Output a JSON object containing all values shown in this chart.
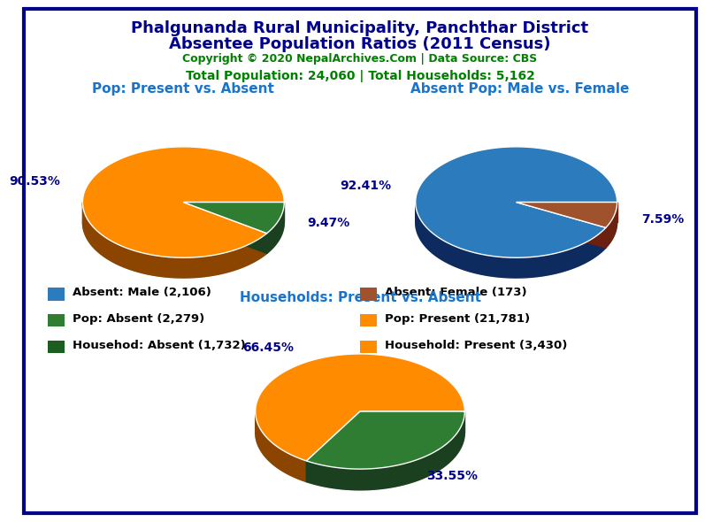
{
  "title_line1": "Phalgunanda Rural Municipality, Panchthar District",
  "title_line2": "Absentee Population Ratios (2011 Census)",
  "title_color": "#00008B",
  "copyright_text": "Copyright © 2020 NepalArchives.Com | Data Source: CBS",
  "copyright_color": "#008000",
  "stats_text": "Total Population: 24,060 | Total Households: 5,162",
  "stats_color": "#008000",
  "pie1_title": "Pop: Present vs. Absent",
  "pie1_title_color": "#1874CD",
  "pie1_values": [
    90.53,
    9.47
  ],
  "pie1_colors": [
    "#FF8C00",
    "#2E7D32"
  ],
  "pie1_shadow_colors": [
    "#8B4500",
    "#1B4020"
  ],
  "pie1_labels": [
    "90.53%",
    "9.47%"
  ],
  "pie2_title": "Absent Pop: Male vs. Female",
  "pie2_title_color": "#1874CD",
  "pie2_values": [
    92.41,
    7.59
  ],
  "pie2_colors": [
    "#2B7BBD",
    "#A0522D"
  ],
  "pie2_shadow_colors": [
    "#0D2B5E",
    "#6B2010"
  ],
  "pie2_labels": [
    "92.41%",
    "7.59%"
  ],
  "pie3_title": "Households: Present vs. Absent",
  "pie3_title_color": "#1874CD",
  "pie3_values": [
    66.45,
    33.55
  ],
  "pie3_colors": [
    "#FF8C00",
    "#2E7D32"
  ],
  "pie3_shadow_colors": [
    "#8B4500",
    "#1B4020"
  ],
  "pie3_labels": [
    "66.45%",
    "33.55%"
  ],
  "legend_entries": [
    {
      "label": "Absent: Male (2,106)",
      "color": "#2B7BBD"
    },
    {
      "label": "Absent: Female (173)",
      "color": "#A0522D"
    },
    {
      "label": "Pop: Absent (2,279)",
      "color": "#2E7D32"
    },
    {
      "label": "Pop: Present (21,781)",
      "color": "#FF8C00"
    },
    {
      "label": "Househod: Absent (1,732)",
      "color": "#1B5E20"
    },
    {
      "label": "Household: Present (3,430)",
      "color": "#FF8C00"
    }
  ],
  "label_color": "#00008B",
  "background_color": "#FFFFFF",
  "border_color": "#00008B"
}
